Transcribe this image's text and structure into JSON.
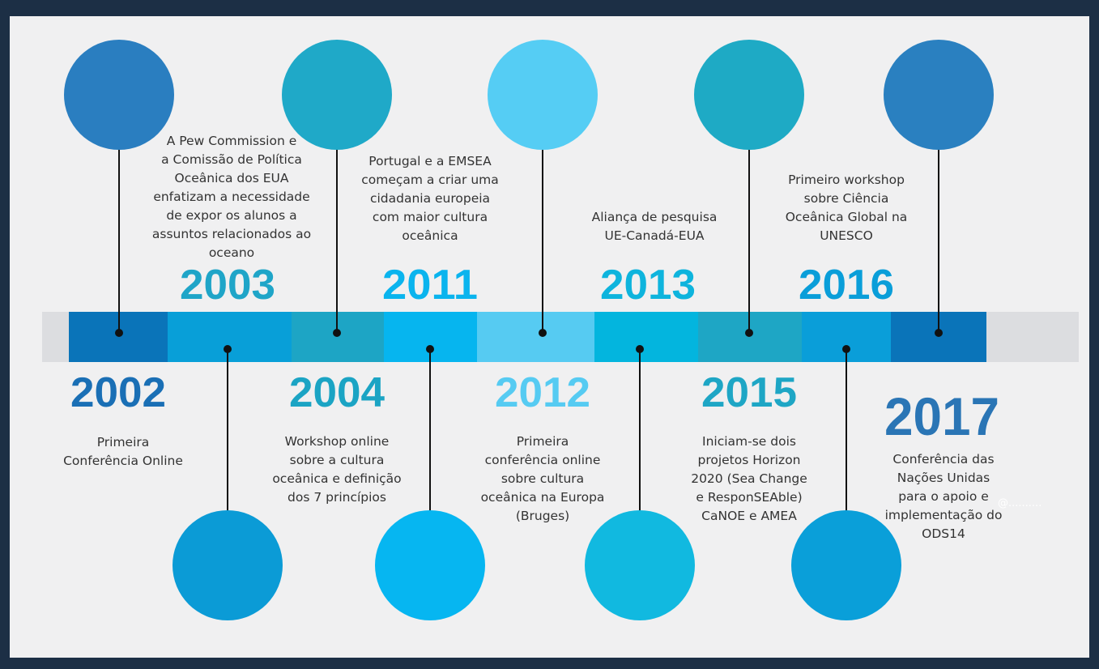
{
  "timeline": {
    "events": [
      {
        "year": "2002",
        "text": [
          "Primeira",
          "Conferência Online"
        ],
        "bar_color": "#0a74b9",
        "circle_color": "#2a7ec0",
        "year_color": "#1a6fb5"
      },
      {
        "year": "2003",
        "text": [
          "A Pew Commission e",
          "a Comissão de Política",
          "Oceânica dos EUA",
          "enfatizam a necessidade",
          "de expor os alunos a",
          "assuntos relacionados ao",
          "oceano"
        ],
        "bar_color": "#089fd8",
        "circle_color": "#0b9bd6",
        "year_color": "#1fa5c8"
      },
      {
        "year": "2004",
        "text": [
          "Workshop online",
          "sobre a cultura",
          "oceânica e definição",
          "dos 7 princípios"
        ],
        "bar_color": "#1da5c5",
        "circle_color": "#1fa9c8",
        "year_color": "#1ba4c4"
      },
      {
        "year": "2011",
        "text": [
          "Portugal e a EMSEA",
          "começam a criar uma",
          "cidadania europeia",
          "com maior cultura",
          "oceânica"
        ],
        "bar_color": "#06b5ef",
        "circle_color": "#06b6f1",
        "year_color": "#0ab4ee"
      },
      {
        "year": "2012",
        "text": [
          "Primeira",
          "conferência online",
          "sobre cultura",
          "oceânica na Europa",
          "(Bruges)"
        ],
        "bar_color": "#56cbf2",
        "circle_color": "#55cdf4",
        "year_color": "#56cbf2"
      },
      {
        "year": "2013",
        "text": [
          "Aliança de pesquisa",
          "UE-Canadá-EUA"
        ],
        "bar_color": "#03b5de",
        "circle_color": "#11b9e0",
        "year_color": "#0eb4dd"
      },
      {
        "year": "2015",
        "text": [
          "Iniciam-se dois",
          "projetos Horizon",
          "2020 (Sea Change",
          "e ResponSEAble)",
          "CaNOE e AMEA"
        ],
        "bar_color": "#1ea6c5",
        "circle_color": "#1eaac5",
        "year_color": "#1ea6c5"
      },
      {
        "year": "2016",
        "text": [
          "Primeiro workshop",
          "sobre Ciência",
          "Oceânica Global na",
          "UNESCO"
        ],
        "bar_color": "#0a9ed9",
        "circle_color": "#0a9fd9",
        "year_color": "#0a9ed9"
      },
      {
        "year": "2017",
        "text": [
          "Conferência das",
          "Nações Unidas",
          "para o apoio e",
          "implementação do",
          "ODS14"
        ],
        "bar_color": "#0a74b9",
        "circle_color": "#2a80c0",
        "year_color": "#2a75b5"
      }
    ],
    "watermark": "@.........."
  }
}
